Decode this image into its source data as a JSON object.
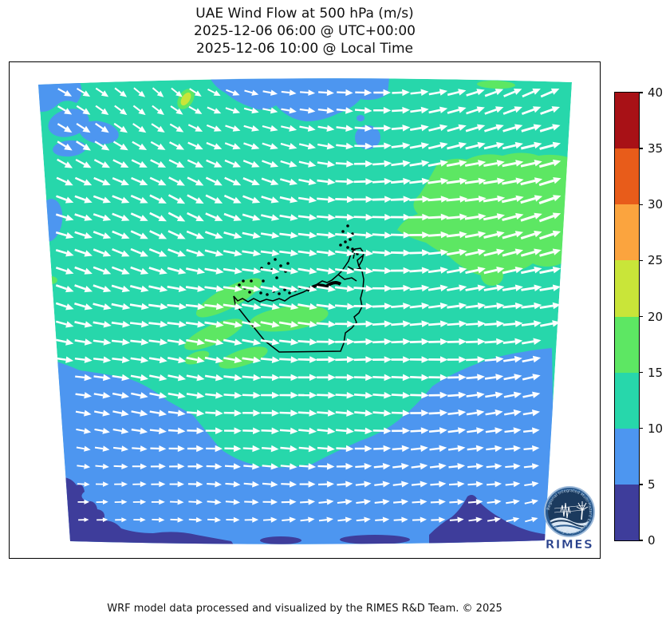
{
  "title": {
    "line1": "UAE Wind Flow at 500 hPa (m/s)",
    "line2": "2025-12-06 06:00 @ UTC+00:00",
    "line3": "2025-12-06 10:00 @ Local Time"
  },
  "footer": "WRF model data processed and visualized by the RIMES R&D Team. © 2025",
  "logo": {
    "caption": "RIMES",
    "ring_text": "Regional Integrated Multi-Hazard Early Warning System"
  },
  "colors": {
    "teal": "#27d7ab",
    "blue": "#4d96f0",
    "indigo": "#3e3d9b",
    "green": "#5de763",
    "yellow_green": "#c9e539",
    "orange": "#fba43e",
    "orange_red": "#e85c1a",
    "dark_red": "#a81116",
    "arrow": "#ffffff",
    "coastline": "#000000",
    "logo_navy": "#1b3a5e",
    "logo_mid_blue": "#2a5a8e",
    "logo_ring": "#9bb8d8",
    "logo_text_blue": "#27408b"
  },
  "colorbar": {
    "unit": "m/s",
    "min": 0,
    "max": 40,
    "ticks": [
      0,
      5,
      10,
      15,
      20,
      25,
      30,
      35,
      40
    ],
    "colors_low_to_high": [
      "#3e3d9b",
      "#4d96f0",
      "#27d7ab",
      "#5de763",
      "#c9e539",
      "#fba43e",
      "#e85c1a",
      "#a81116"
    ]
  },
  "chart_data": {
    "type": "heatmap",
    "subtype": "wind-speed map with quiver arrows (WRF model output)",
    "title": "UAE Wind Flow at 500 hPa (m/s)",
    "subtitle_utc": "2025-12-06 06:00 @ UTC+00:00",
    "subtitle_local": "2025-12-06 10:00 @ Local Time",
    "variable": "wind speed at 500 hPa",
    "speed_unit": "m/s",
    "speed_bins": [
      [
        0,
        5
      ],
      [
        5,
        10
      ],
      [
        10,
        15
      ],
      [
        15,
        20
      ],
      [
        20,
        25
      ],
      [
        25,
        30
      ],
      [
        30,
        35
      ],
      [
        35,
        40
      ]
    ],
    "bin_colors": [
      "#3e3d9b",
      "#4d96f0",
      "#27d7ab",
      "#5de763",
      "#c9e539",
      "#fba43e",
      "#e85c1a",
      "#a81116"
    ],
    "legend_position": "right",
    "dominant_flow": "westerly flow (arrows point east); south-easterly tilt in the northwest, north-easterly tilt in the east and bottom-right",
    "regions": [
      {
        "area": "most of the domain",
        "speed_ms": "10-15",
        "color_name": "teal"
      },
      {
        "area": "large patch east of the UAE",
        "speed_ms": "15-20",
        "color_name": "green"
      },
      {
        "area": "elongated streaks southwest of the UAE coast",
        "speed_ms": "15-20",
        "color_name": "green"
      },
      {
        "area": "band along the top-center and scattered blobs in the northwest",
        "speed_ms": "5-10",
        "color_name": "blue"
      },
      {
        "area": "bottom third of the domain",
        "speed_ms": "5-10",
        "color_name": "blue"
      },
      {
        "area": "bottom-left and bottom-right corners",
        "speed_ms": "0-5",
        "color_name": "indigo"
      }
    ],
    "wind_angle_convention": "degrees clockwise from east in screen coordinates (positive = arrow tilts downward/south)",
    "wind_angles_deg_grid5x5": [
      [
        32,
        38,
        6,
        -12,
        -24
      ],
      [
        22,
        28,
        12,
        -8,
        -18
      ],
      [
        15,
        10,
        6,
        -4,
        -14
      ],
      [
        8,
        6,
        3,
        -2,
        -10
      ],
      [
        2,
        -2,
        -4,
        -8,
        -16
      ]
    ],
    "wind_speeds_ms_grid5x5": [
      [
        10,
        8,
        9,
        12,
        13
      ],
      [
        12,
        12,
        12,
        14,
        16
      ],
      [
        12,
        13,
        13,
        13,
        14
      ],
      [
        9,
        11,
        12,
        12,
        10
      ],
      [
        4,
        7,
        8,
        8,
        7
      ]
    ]
  }
}
